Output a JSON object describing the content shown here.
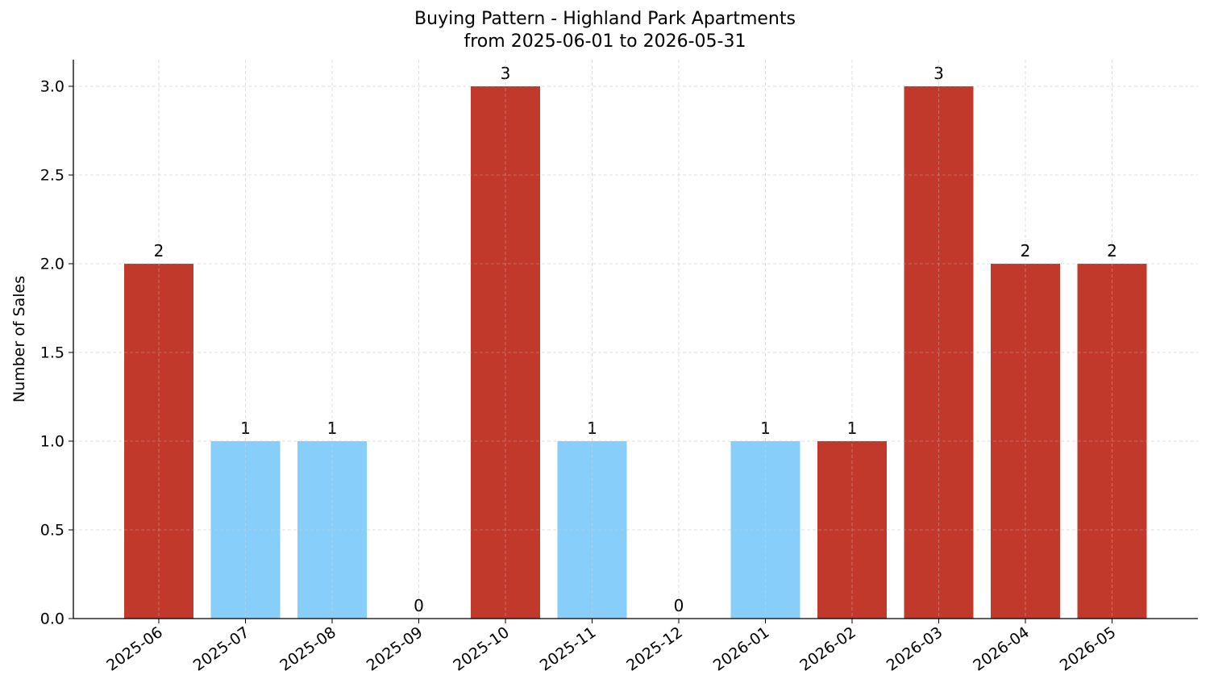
{
  "chart_data": {
    "type": "bar",
    "title": "Buying Pattern - Highland Park Apartments",
    "subtitle": "from 2025-06-01 to 2026-05-31",
    "xlabel": "",
    "ylabel": "Number of Sales",
    "categories": [
      "2025-06",
      "2025-07",
      "2025-08",
      "2025-09",
      "2025-10",
      "2025-11",
      "2025-12",
      "2026-01",
      "2026-02",
      "2026-03",
      "2026-04",
      "2026-05"
    ],
    "values": [
      2,
      1,
      1,
      0,
      3,
      1,
      0,
      1,
      1,
      3,
      2,
      2
    ],
    "bar_colors": [
      "#c0392b",
      "#87cefa",
      "#87cefa",
      "#87cefa",
      "#c0392b",
      "#87cefa",
      "#87cefa",
      "#87cefa",
      "#c0392b",
      "#c0392b",
      "#c0392b",
      "#c0392b"
    ],
    "ylim": [
      0,
      3.15
    ],
    "yticks": [
      "0.0",
      "0.5",
      "1.0",
      "1.5",
      "2.0",
      "2.5",
      "3.0"
    ],
    "grid": true,
    "data_labels": true
  }
}
